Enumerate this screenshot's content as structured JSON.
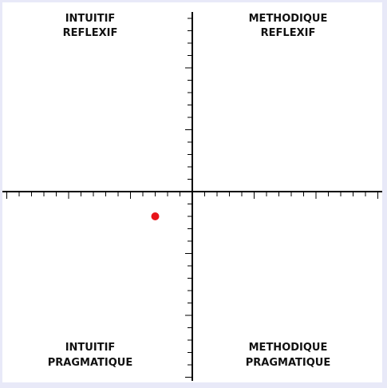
{
  "chart_data": {
    "type": "scatter",
    "xlim": [
      -15,
      15
    ],
    "ylim": [
      -15,
      15
    ],
    "grid": false,
    "quadrants": {
      "top_left": [
        "INTUITIF",
        "REFLEXIF"
      ],
      "top_right": [
        "METHODIQUE",
        "REFLEXIF"
      ],
      "bottom_left": [
        "INTUITIF",
        "PRAGMATIQUE"
      ],
      "bottom_right": [
        "METHODIQUE",
        "PRAGMATIQUE"
      ]
    },
    "points": [
      {
        "x": -3,
        "y": -2
      }
    ],
    "point_color": "#e8141a"
  }
}
